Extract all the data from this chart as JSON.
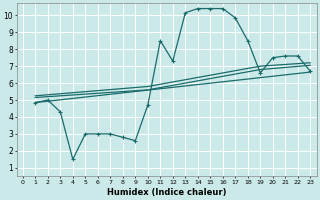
{
  "xlabel": "Humidex (Indice chaleur)",
  "xlim": [
    -0.5,
    23.5
  ],
  "ylim": [
    0.5,
    10.7
  ],
  "xticks": [
    0,
    1,
    2,
    3,
    4,
    5,
    6,
    7,
    8,
    9,
    10,
    11,
    12,
    13,
    14,
    15,
    16,
    17,
    18,
    19,
    20,
    21,
    22,
    23
  ],
  "yticks": [
    1,
    2,
    3,
    4,
    5,
    6,
    7,
    8,
    9,
    10
  ],
  "bg_color": "#cce9e9",
  "grid_color": "#ffffff",
  "line_color": "#1a6b6b",
  "main_x": [
    1,
    2,
    3,
    4,
    5,
    6,
    7,
    8,
    9,
    10,
    11,
    12,
    13,
    14,
    15,
    16,
    17,
    18,
    19,
    20,
    21,
    22,
    23
  ],
  "main_y": [
    4.85,
    5.0,
    4.3,
    1.5,
    3.0,
    3.0,
    3.0,
    2.8,
    2.6,
    4.7,
    8.5,
    7.3,
    10.15,
    10.4,
    10.4,
    10.4,
    9.85,
    8.5,
    6.6,
    7.5,
    7.6,
    7.6,
    6.7
  ],
  "trend1_x": [
    1,
    23
  ],
  "trend1_y": [
    4.85,
    6.65
  ],
  "trend2_x": [
    1,
    10,
    19,
    23
  ],
  "trend2_y": [
    5.15,
    5.6,
    6.8,
    7.05
  ],
  "trend3_x": [
    1,
    10,
    19,
    23
  ],
  "trend3_y": [
    5.25,
    5.8,
    7.0,
    7.2
  ]
}
